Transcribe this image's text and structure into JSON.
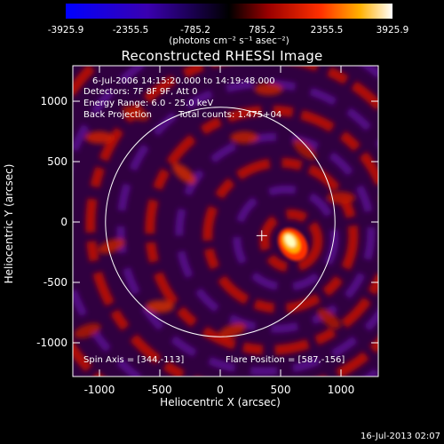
{
  "colorbar": {
    "ticks": [
      "-3925.9",
      "-2355.5",
      "-785.2",
      "785.2",
      "2355.5",
      "3925.9"
    ],
    "units": "(photons cm⁻² s⁻¹ asec⁻²)",
    "min": -3925.9,
    "max": 3925.9
  },
  "title": "Reconstructed RHESSI Image",
  "info": {
    "line1": "6-Jul-2006 14:15:20.000 to 14:19:48.000",
    "line2": "Detectors: 7F 8F 9F, Att 0",
    "line3": "Energy Range: 6.0 - 25.0 keV",
    "line4a": "Back Projection",
    "line4b": "Total counts: 1.475+04"
  },
  "annotations": {
    "spin_axis": "Spin Axis = [344,-113]",
    "flare_position": "Flare Position = [587,-156]"
  },
  "chart_data": {
    "type": "heatmap",
    "xlabel": "Heliocentric X (arcsec)",
    "ylabel": "Heliocentric Y (arcsec)",
    "xlim": [
      -1280,
      1280
    ],
    "ylim": [
      -1280,
      1280
    ],
    "xticks": [
      "-1000",
      "-500",
      "0",
      "500",
      "1000"
    ],
    "xtick_values": [
      -1000,
      -500,
      0,
      500,
      1000
    ],
    "yticks": [
      "1000",
      "500",
      "0",
      "-500",
      "-1000"
    ],
    "ytick_values": [
      1000,
      500,
      0,
      -500,
      -1000
    ],
    "solar_limb_radius": 950,
    "spin_axis": [
      344,
      -113
    ],
    "flare_position": [
      587,
      -156
    ],
    "colors": {
      "negative": "#2010ff",
      "mid": "#300040",
      "positive": "#ff2000",
      "peak": "#ffffc0"
    }
  },
  "footer": "16-Jul-2013 02:07"
}
